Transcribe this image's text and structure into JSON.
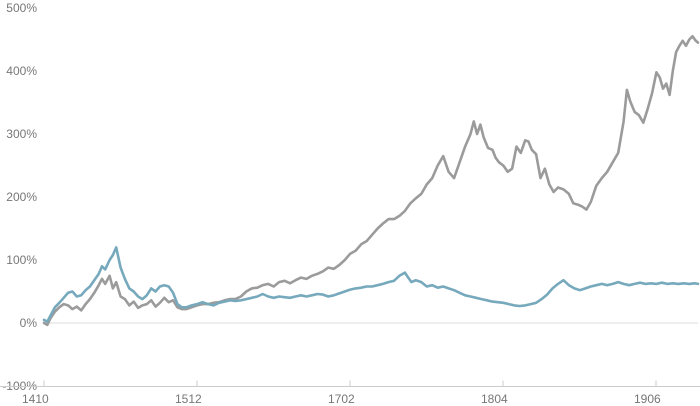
{
  "chart_data": {
    "type": "line",
    "title": "",
    "xlabel": "",
    "ylabel": "",
    "ylim": [
      -100,
      500
    ],
    "y_ticks": [
      -100,
      0,
      100,
      200,
      300,
      400,
      500
    ],
    "y_tick_labels": [
      "-100%",
      "0%",
      "100%",
      "200%",
      "300%",
      "400%",
      "500%"
    ],
    "x_ticks": [
      "1410",
      "1512",
      "1702",
      "1804",
      "1906"
    ],
    "grid": false,
    "legend": "none",
    "series": [
      {
        "color": "#9b9b9b",
        "points": [
          [
            0,
            0
          ],
          [
            3,
            -3
          ],
          [
            6,
            8
          ],
          [
            10,
            18
          ],
          [
            14,
            25
          ],
          [
            18,
            30
          ],
          [
            22,
            28
          ],
          [
            26,
            22
          ],
          [
            30,
            26
          ],
          [
            34,
            20
          ],
          [
            38,
            30
          ],
          [
            42,
            38
          ],
          [
            46,
            48
          ],
          [
            50,
            60
          ],
          [
            53,
            70
          ],
          [
            56,
            62
          ],
          [
            60,
            75
          ],
          [
            63,
            55
          ],
          [
            66,
            65
          ],
          [
            70,
            42
          ],
          [
            74,
            38
          ],
          [
            78,
            28
          ],
          [
            82,
            34
          ],
          [
            86,
            24
          ],
          [
            90,
            28
          ],
          [
            94,
            30
          ],
          [
            98,
            36
          ],
          [
            102,
            26
          ],
          [
            106,
            32
          ],
          [
            110,
            40
          ],
          [
            114,
            33
          ],
          [
            118,
            36
          ],
          [
            122,
            25
          ],
          [
            126,
            22
          ],
          [
            130,
            22
          ],
          [
            135,
            25
          ],
          [
            140,
            28
          ],
          [
            145,
            30
          ],
          [
            150,
            30
          ],
          [
            155,
            32
          ],
          [
            160,
            33
          ],
          [
            165,
            36
          ],
          [
            170,
            38
          ],
          [
            175,
            38
          ],
          [
            180,
            42
          ],
          [
            185,
            50
          ],
          [
            190,
            55
          ],
          [
            195,
            56
          ],
          [
            200,
            60
          ],
          [
            205,
            62
          ],
          [
            210,
            58
          ],
          [
            215,
            65
          ],
          [
            220,
            67
          ],
          [
            225,
            63
          ],
          [
            230,
            68
          ],
          [
            235,
            72
          ],
          [
            240,
            70
          ],
          [
            245,
            75
          ],
          [
            250,
            78
          ],
          [
            255,
            82
          ],
          [
            260,
            88
          ],
          [
            265,
            86
          ],
          [
            270,
            92
          ],
          [
            275,
            100
          ],
          [
            280,
            110
          ],
          [
            285,
            115
          ],
          [
            290,
            125
          ],
          [
            295,
            130
          ],
          [
            300,
            140
          ],
          [
            305,
            150
          ],
          [
            310,
            158
          ],
          [
            315,
            165
          ],
          [
            320,
            165
          ],
          [
            325,
            170
          ],
          [
            330,
            178
          ],
          [
            335,
            190
          ],
          [
            340,
            198
          ],
          [
            345,
            205
          ],
          [
            350,
            220
          ],
          [
            355,
            230
          ],
          [
            360,
            250
          ],
          [
            365,
            265
          ],
          [
            370,
            240
          ],
          [
            375,
            230
          ],
          [
            380,
            255
          ],
          [
            385,
            280
          ],
          [
            390,
            300
          ],
          [
            393,
            320
          ],
          [
            396,
            300
          ],
          [
            399,
            315
          ],
          [
            402,
            295
          ],
          [
            406,
            278
          ],
          [
            410,
            275
          ],
          [
            413,
            262
          ],
          [
            416,
            255
          ],
          [
            420,
            250
          ],
          [
            424,
            240
          ],
          [
            428,
            245
          ],
          [
            432,
            280
          ],
          [
            436,
            270
          ],
          [
            440,
            290
          ],
          [
            443,
            288
          ],
          [
            446,
            275
          ],
          [
            450,
            268
          ],
          [
            454,
            230
          ],
          [
            458,
            245
          ],
          [
            462,
            220
          ],
          [
            466,
            208
          ],
          [
            470,
            215
          ],
          [
            475,
            212
          ],
          [
            480,
            205
          ],
          [
            484,
            190
          ],
          [
            488,
            188
          ],
          [
            492,
            185
          ],
          [
            496,
            180
          ],
          [
            500,
            192
          ],
          [
            505,
            218
          ],
          [
            510,
            230
          ],
          [
            515,
            240
          ],
          [
            520,
            255
          ],
          [
            525,
            270
          ],
          [
            530,
            320
          ],
          [
            533,
            370
          ],
          [
            536,
            352
          ],
          [
            540,
            335
          ],
          [
            544,
            330
          ],
          [
            548,
            318
          ],
          [
            552,
            340
          ],
          [
            556,
            365
          ],
          [
            560,
            398
          ],
          [
            563,
            390
          ],
          [
            566,
            372
          ],
          [
            569,
            380
          ],
          [
            572,
            362
          ],
          [
            575,
            400
          ],
          [
            578,
            430
          ],
          [
            581,
            440
          ],
          [
            584,
            448
          ],
          [
            587,
            440
          ],
          [
            590,
            450
          ],
          [
            593,
            455
          ],
          [
            596,
            448
          ],
          [
            598,
            445
          ]
        ]
      },
      {
        "color": "#77a9bd",
        "points": [
          [
            0,
            5
          ],
          [
            3,
            2
          ],
          [
            6,
            12
          ],
          [
            10,
            25
          ],
          [
            14,
            32
          ],
          [
            18,
            40
          ],
          [
            22,
            48
          ],
          [
            26,
            50
          ],
          [
            30,
            42
          ],
          [
            34,
            44
          ],
          [
            38,
            52
          ],
          [
            42,
            58
          ],
          [
            46,
            68
          ],
          [
            50,
            78
          ],
          [
            53,
            90
          ],
          [
            56,
            85
          ],
          [
            60,
            100
          ],
          [
            63,
            108
          ],
          [
            66,
            120
          ],
          [
            70,
            88
          ],
          [
            74,
            70
          ],
          [
            78,
            55
          ],
          [
            82,
            50
          ],
          [
            86,
            42
          ],
          [
            90,
            38
          ],
          [
            94,
            44
          ],
          [
            98,
            55
          ],
          [
            102,
            50
          ],
          [
            106,
            58
          ],
          [
            110,
            60
          ],
          [
            114,
            58
          ],
          [
            118,
            48
          ],
          [
            122,
            30
          ],
          [
            126,
            25
          ],
          [
            130,
            25
          ],
          [
            135,
            28
          ],
          [
            140,
            30
          ],
          [
            145,
            33
          ],
          [
            150,
            30
          ],
          [
            155,
            28
          ],
          [
            160,
            32
          ],
          [
            165,
            34
          ],
          [
            170,
            36
          ],
          [
            175,
            35
          ],
          [
            180,
            36
          ],
          [
            185,
            38
          ],
          [
            190,
            40
          ],
          [
            195,
            42
          ],
          [
            200,
            46
          ],
          [
            205,
            42
          ],
          [
            210,
            40
          ],
          [
            215,
            42
          ],
          [
            220,
            41
          ],
          [
            225,
            40
          ],
          [
            230,
            42
          ],
          [
            235,
            44
          ],
          [
            240,
            42
          ],
          [
            245,
            44
          ],
          [
            250,
            46
          ],
          [
            255,
            45
          ],
          [
            260,
            42
          ],
          [
            265,
            44
          ],
          [
            270,
            47
          ],
          [
            275,
            50
          ],
          [
            280,
            53
          ],
          [
            285,
            55
          ],
          [
            290,
            56
          ],
          [
            295,
            58
          ],
          [
            300,
            58
          ],
          [
            305,
            60
          ],
          [
            310,
            62
          ],
          [
            315,
            65
          ],
          [
            320,
            67
          ],
          [
            325,
            75
          ],
          [
            330,
            80
          ],
          [
            333,
            72
          ],
          [
            336,
            65
          ],
          [
            340,
            68
          ],
          [
            345,
            65
          ],
          [
            350,
            58
          ],
          [
            355,
            60
          ],
          [
            360,
            56
          ],
          [
            365,
            58
          ],
          [
            370,
            55
          ],
          [
            375,
            52
          ],
          [
            380,
            48
          ],
          [
            385,
            44
          ],
          [
            390,
            42
          ],
          [
            395,
            40
          ],
          [
            400,
            38
          ],
          [
            405,
            36
          ],
          [
            410,
            34
          ],
          [
            415,
            33
          ],
          [
            420,
            32
          ],
          [
            425,
            30
          ],
          [
            430,
            28
          ],
          [
            435,
            27
          ],
          [
            440,
            28
          ],
          [
            445,
            30
          ],
          [
            450,
            32
          ],
          [
            455,
            38
          ],
          [
            460,
            45
          ],
          [
            465,
            55
          ],
          [
            470,
            62
          ],
          [
            475,
            68
          ],
          [
            480,
            60
          ],
          [
            485,
            55
          ],
          [
            490,
            52
          ],
          [
            495,
            55
          ],
          [
            500,
            58
          ],
          [
            505,
            60
          ],
          [
            510,
            62
          ],
          [
            515,
            60
          ],
          [
            520,
            62
          ],
          [
            525,
            65
          ],
          [
            530,
            62
          ],
          [
            535,
            60
          ],
          [
            540,
            62
          ],
          [
            545,
            64
          ],
          [
            550,
            62
          ],
          [
            555,
            63
          ],
          [
            560,
            62
          ],
          [
            565,
            64
          ],
          [
            570,
            62
          ],
          [
            575,
            63
          ],
          [
            580,
            62
          ],
          [
            585,
            63
          ],
          [
            590,
            62
          ],
          [
            595,
            63
          ],
          [
            598,
            62
          ]
        ]
      }
    ]
  }
}
